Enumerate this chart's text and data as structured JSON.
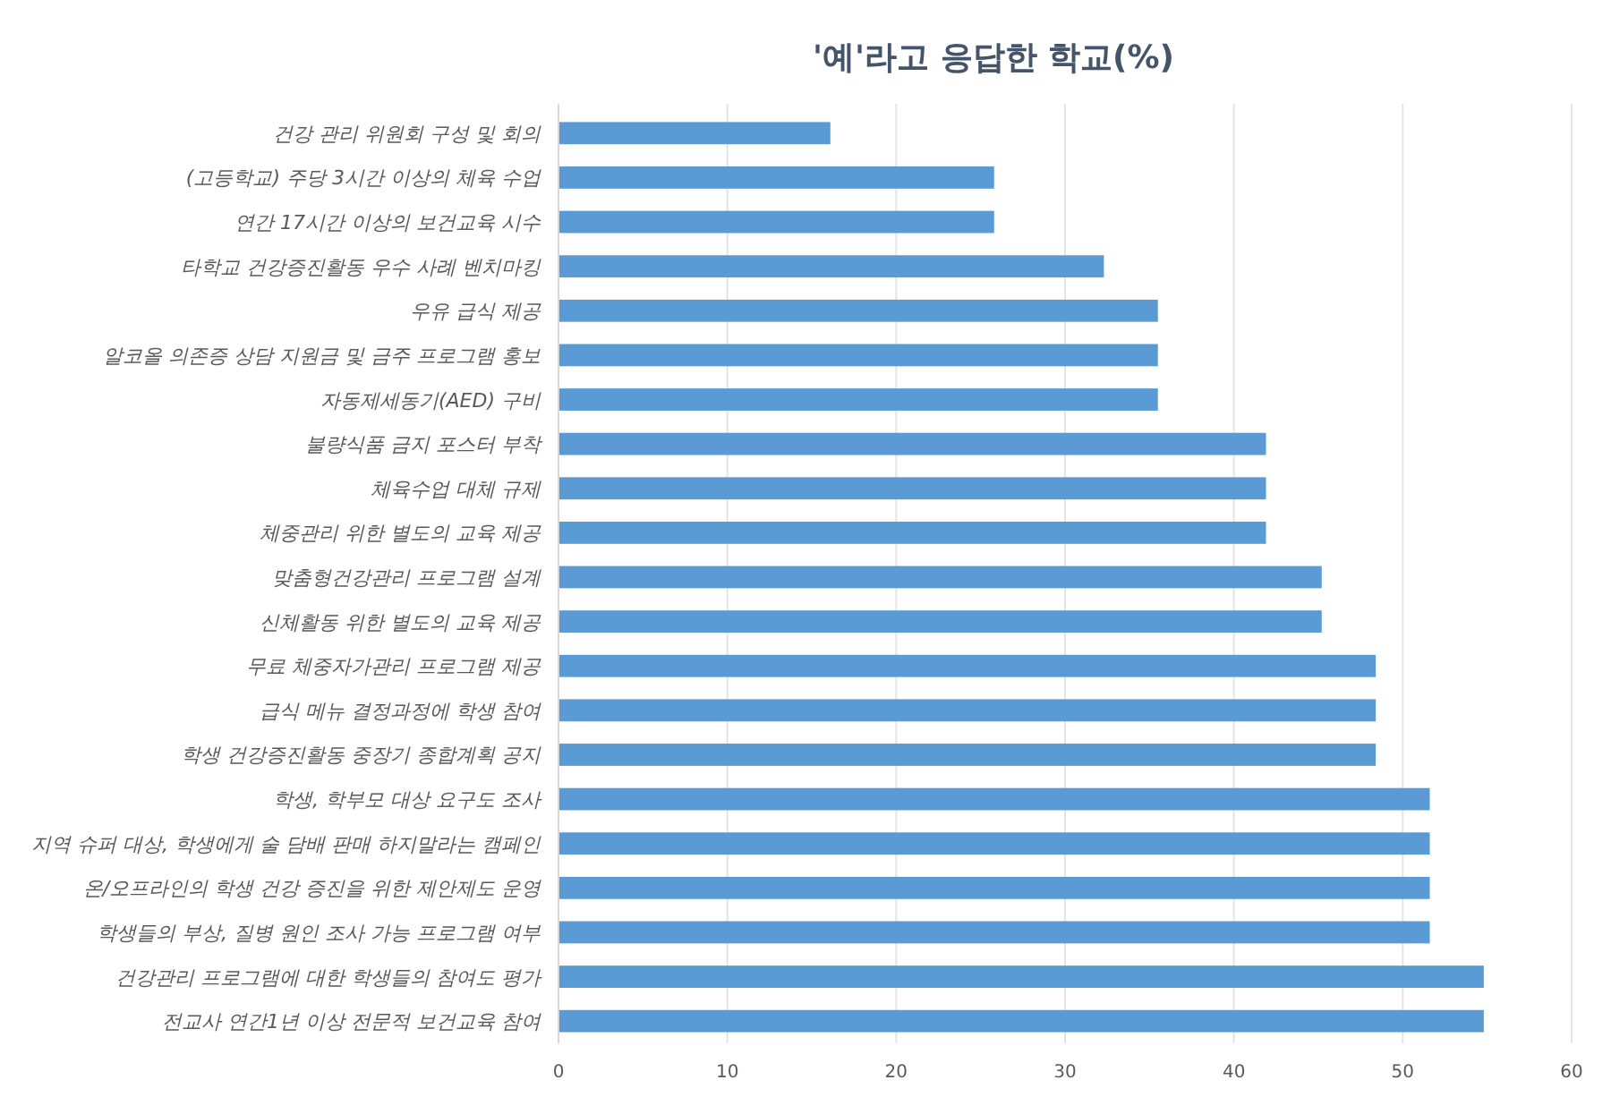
{
  "chart_data": {
    "type": "bar",
    "orientation": "horizontal",
    "title": "'예'라고 응답한 학교(%)",
    "categories": [
      "건강 관리 위원회 구성 및 회의",
      "(고등학교) 주당 3시간 이상의 체육 수업",
      "연간 17시간 이상의 보건교육 시수",
      "타학교 건강증진활동 우수 사례 벤치마킹",
      "우유 급식 제공",
      "알코올 의존증 상담 지원금 및 금주 프로그램 홍보",
      "자동제세동기(AED) 구비",
      "불량식품 금지 포스터 부착",
      "체육수업 대체 규제",
      "체중관리 위한 별도의 교육 제공",
      "맞춤형건강관리 프로그램 설계",
      "신체활동 위한 별도의 교육 제공",
      "무료 체중자가관리 프로그램 제공",
      "급식 메뉴 결정과정에 학생 참여",
      "학생 건강증진활동 중장기 종합계획 공지",
      "학생, 학부모 대상 요구도 조사",
      "지역 슈퍼 대상, 학생에게 술 담배 판매 하지말라는 캠페인",
      "온/오프라인의 학생 건강 증진을 위한 제안제도 운영",
      "학생들의 부상, 질병 원인 조사 가능 프로그램 여부",
      "건강관리 프로그램에 대한 학생들의 참여도 평가",
      "전교사 연간1년 이상 전문적 보건교육 참여"
    ],
    "values": [
      16.1,
      25.8,
      25.8,
      32.3,
      35.5,
      35.5,
      35.5,
      41.9,
      41.9,
      41.9,
      45.2,
      45.2,
      48.4,
      48.4,
      48.4,
      51.6,
      51.6,
      51.6,
      51.6,
      54.8,
      54.8
    ],
    "color": "#5b9bd5",
    "xlim": [
      0,
      60
    ],
    "xticks": [
      0,
      10,
      20,
      30,
      40,
      50,
      60
    ],
    "grid": "x"
  }
}
